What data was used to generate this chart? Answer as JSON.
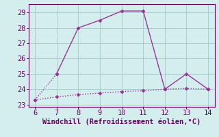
{
  "xlabel": "Windchill (Refroidissement éolien,°C)",
  "line1_x": [
    6,
    7,
    8,
    9,
    10,
    11,
    12,
    13,
    14
  ],
  "line1_y": [
    23.3,
    25.0,
    28.0,
    28.5,
    29.1,
    29.1,
    24.0,
    25.0,
    24.0
  ],
  "line2_x": [
    6,
    7,
    8,
    9,
    10,
    11,
    12,
    13,
    14
  ],
  "line2_y": [
    23.3,
    23.5,
    23.65,
    23.75,
    23.85,
    23.9,
    24.0,
    24.05,
    24.0
  ],
  "line_color": "#993399",
  "bg_color": "#d4eeee",
  "grid_color": "#aacccc",
  "text_color": "#660066",
  "xlim": [
    5.7,
    14.3
  ],
  "ylim": [
    22.85,
    29.55
  ],
  "xticks": [
    6,
    7,
    8,
    9,
    10,
    11,
    12,
    13,
    14
  ],
  "yticks": [
    23,
    24,
    25,
    26,
    27,
    28,
    29
  ],
  "markersize": 2.5,
  "linewidth": 1.0,
  "xlabel_fontsize": 7.5,
  "tick_fontsize": 7.5
}
